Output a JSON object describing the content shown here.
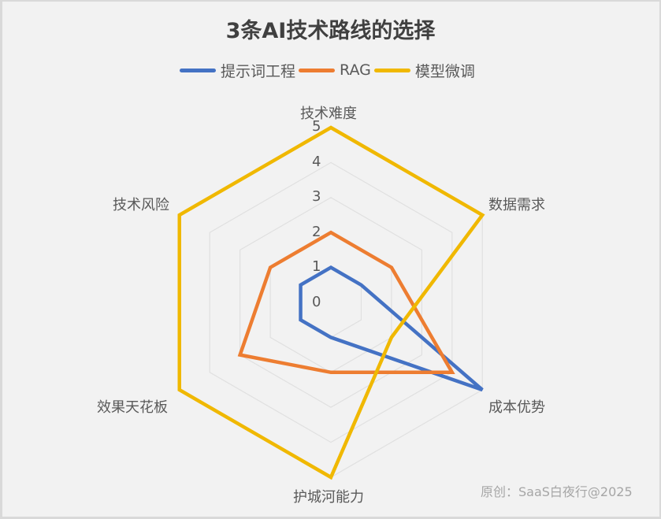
{
  "chart_data": {
    "type": "radar",
    "title": "3条AI技术路线的选择",
    "categories": [
      "技术难度",
      "数据需求",
      "成本优势",
      "护城河能力",
      "效果天花板",
      "技术风险"
    ],
    "series": [
      {
        "name": "提示词工程",
        "color": "#4472c4",
        "values": [
          1,
          1,
          5,
          1,
          1,
          1
        ]
      },
      {
        "name": "RAG",
        "color": "#ed7d31",
        "values": [
          2,
          2,
          4,
          2,
          3,
          2
        ]
      },
      {
        "name": "模型微调",
        "color": "#f0b800",
        "values": [
          5,
          5,
          2,
          5,
          5,
          5
        ]
      }
    ],
    "radial_ticks": [
      "0",
      "1",
      "2",
      "3",
      "4",
      "5"
    ],
    "rlim": [
      0,
      5
    ],
    "grid": true,
    "legend_position": "top"
  },
  "title": "3条AI技术路线的选择",
  "legend": [
    {
      "label": "提示词工程",
      "color": "#4472c4"
    },
    {
      "label": "RAG",
      "color": "#ed7d31"
    },
    {
      "label": "模型微调",
      "color": "#f0b800"
    }
  ],
  "axes": {
    "top": "技术难度",
    "upper_right": "数据需求",
    "lower_right": "成本优势",
    "bottom": "护城河能力",
    "lower_left": "效果天花板",
    "upper_left": "技术风险"
  },
  "ticks": [
    "0",
    "1",
    "2",
    "3",
    "4",
    "5"
  ],
  "credit": "原创：SaaS白夜行@2025"
}
